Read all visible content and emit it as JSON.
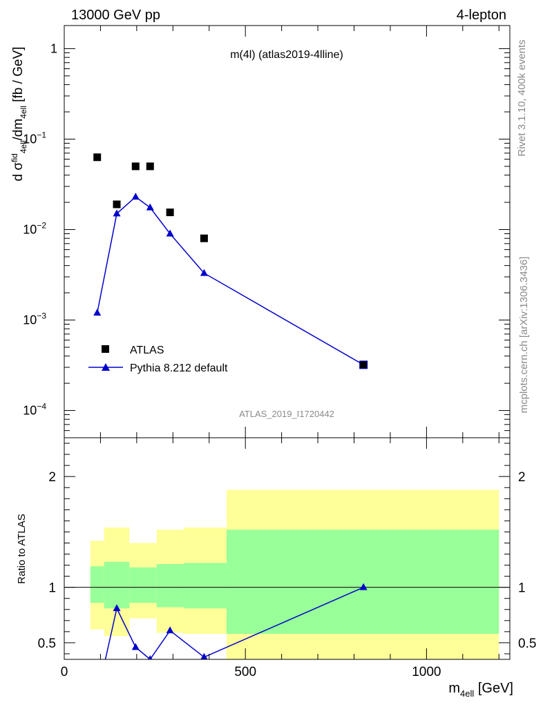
{
  "header": {
    "left": "13000 GeV pp",
    "right": "4-lepton"
  },
  "side_text": {
    "top": "Rivet 3.1.10,  400k events",
    "bottom": "mcplots.cern.ch [arXiv:1306.3436]"
  },
  "chart_data": [
    {
      "type": "scatter",
      "title": "m(4l) (atlas2019-4lline)",
      "watermark": "ATLAS_2019_I1720442",
      "xlabel": "m_4ell [GeV]",
      "ylabel": "d σ^fid_4ell /dm_4ell [fb / GeV]",
      "yscale": "log",
      "xlim": [
        0,
        1230
      ],
      "ylim": [
        5e-05,
        1.8
      ],
      "ytick_labels": [
        "1",
        "10^-1",
        "10^-2",
        "10^-3",
        "10^-4"
      ],
      "legend_position": "lower-left",
      "series": [
        {
          "name": "ATLAS",
          "marker": "square",
          "color": "#000000",
          "x": [
            91,
            145,
            197,
            237,
            292,
            386,
            826
          ],
          "y": [
            0.063,
            0.019,
            0.05,
            0.05,
            0.0155,
            0.008,
            0.00032
          ]
        },
        {
          "name": "Pythia 8.212 default",
          "marker": "triangle",
          "line": true,
          "color": "#0000cc",
          "x": [
            91,
            145,
            197,
            237,
            292,
            386,
            826
          ],
          "y": [
            0.0012,
            0.015,
            0.023,
            0.0175,
            0.009,
            0.0033,
            0.00032
          ]
        }
      ]
    },
    {
      "type": "line",
      "ylabel": "Ratio to ATLAS",
      "xlabel": "m_4ell [GeV]",
      "xlim": [
        0,
        1230
      ],
      "ylim": [
        0.35,
        2.35
      ],
      "xtick_labels": [
        "0",
        "500",
        "1000"
      ],
      "ytick_labels": [
        "0.5",
        "1",
        "2"
      ],
      "reference_line": 1,
      "bands": [
        {
          "x0": 72,
          "x1": 110,
          "outer": [
            0.62,
            1.42
          ],
          "inner": [
            0.86,
            1.19
          ]
        },
        {
          "x0": 110,
          "x1": 180,
          "outer": [
            0.56,
            1.54
          ],
          "inner": [
            0.81,
            1.23
          ]
        },
        {
          "x0": 180,
          "x1": 255,
          "outer": [
            0.72,
            1.4
          ],
          "inner": [
            0.86,
            1.18
          ]
        },
        {
          "x0": 255,
          "x1": 330,
          "outer": [
            0.59,
            1.52
          ],
          "inner": [
            0.82,
            1.21
          ]
        },
        {
          "x0": 330,
          "x1": 448,
          "outer": [
            0.58,
            1.54
          ],
          "inner": [
            0.81,
            1.22
          ]
        },
        {
          "x0": 448,
          "x1": 1200,
          "outer": [
            0.35,
            1.88
          ],
          "inner": [
            0.58,
            1.52
          ]
        }
      ],
      "colors": {
        "outer": "#ffff99",
        "inner": "#99ff99"
      },
      "series": [
        {
          "name": "Pythia 8.212 default",
          "color": "#0000cc",
          "x": [
            91,
            145,
            197,
            237,
            292,
            386,
            826
          ],
          "y": [
            0.019,
            0.81,
            0.46,
            0.35,
            0.61,
            0.37,
            1.0
          ]
        }
      ]
    }
  ]
}
